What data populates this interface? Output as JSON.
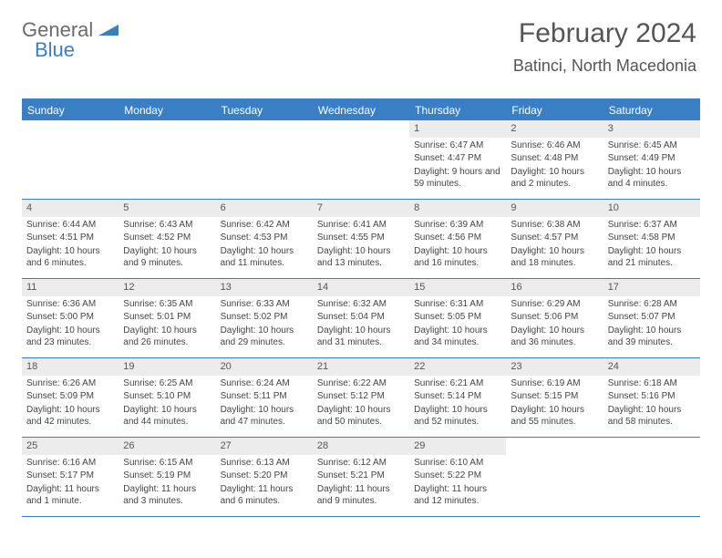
{
  "logo": {
    "part1": "General",
    "part2": "Blue"
  },
  "header": {
    "month": "February 2024",
    "location": "Batinci, North Macedonia"
  },
  "colors": {
    "accent": "#3a7fc4",
    "headerText": "#555",
    "daynumBg": "#ececec"
  },
  "weekdays": [
    "Sunday",
    "Monday",
    "Tuesday",
    "Wednesday",
    "Thursday",
    "Friday",
    "Saturday"
  ],
  "weeks": [
    [
      null,
      null,
      null,
      null,
      {
        "n": "1",
        "sr": "Sunrise: 6:47 AM",
        "ss": "Sunset: 4:47 PM",
        "dl": "Daylight: 9 hours and 59 minutes."
      },
      {
        "n": "2",
        "sr": "Sunrise: 6:46 AM",
        "ss": "Sunset: 4:48 PM",
        "dl": "Daylight: 10 hours and 2 minutes."
      },
      {
        "n": "3",
        "sr": "Sunrise: 6:45 AM",
        "ss": "Sunset: 4:49 PM",
        "dl": "Daylight: 10 hours and 4 minutes."
      }
    ],
    [
      {
        "n": "4",
        "sr": "Sunrise: 6:44 AM",
        "ss": "Sunset: 4:51 PM",
        "dl": "Daylight: 10 hours and 6 minutes."
      },
      {
        "n": "5",
        "sr": "Sunrise: 6:43 AM",
        "ss": "Sunset: 4:52 PM",
        "dl": "Daylight: 10 hours and 9 minutes."
      },
      {
        "n": "6",
        "sr": "Sunrise: 6:42 AM",
        "ss": "Sunset: 4:53 PM",
        "dl": "Daylight: 10 hours and 11 minutes."
      },
      {
        "n": "7",
        "sr": "Sunrise: 6:41 AM",
        "ss": "Sunset: 4:55 PM",
        "dl": "Daylight: 10 hours and 13 minutes."
      },
      {
        "n": "8",
        "sr": "Sunrise: 6:39 AM",
        "ss": "Sunset: 4:56 PM",
        "dl": "Daylight: 10 hours and 16 minutes."
      },
      {
        "n": "9",
        "sr": "Sunrise: 6:38 AM",
        "ss": "Sunset: 4:57 PM",
        "dl": "Daylight: 10 hours and 18 minutes."
      },
      {
        "n": "10",
        "sr": "Sunrise: 6:37 AM",
        "ss": "Sunset: 4:58 PM",
        "dl": "Daylight: 10 hours and 21 minutes."
      }
    ],
    [
      {
        "n": "11",
        "sr": "Sunrise: 6:36 AM",
        "ss": "Sunset: 5:00 PM",
        "dl": "Daylight: 10 hours and 23 minutes."
      },
      {
        "n": "12",
        "sr": "Sunrise: 6:35 AM",
        "ss": "Sunset: 5:01 PM",
        "dl": "Daylight: 10 hours and 26 minutes."
      },
      {
        "n": "13",
        "sr": "Sunrise: 6:33 AM",
        "ss": "Sunset: 5:02 PM",
        "dl": "Daylight: 10 hours and 29 minutes."
      },
      {
        "n": "14",
        "sr": "Sunrise: 6:32 AM",
        "ss": "Sunset: 5:04 PM",
        "dl": "Daylight: 10 hours and 31 minutes."
      },
      {
        "n": "15",
        "sr": "Sunrise: 6:31 AM",
        "ss": "Sunset: 5:05 PM",
        "dl": "Daylight: 10 hours and 34 minutes."
      },
      {
        "n": "16",
        "sr": "Sunrise: 6:29 AM",
        "ss": "Sunset: 5:06 PM",
        "dl": "Daylight: 10 hours and 36 minutes."
      },
      {
        "n": "17",
        "sr": "Sunrise: 6:28 AM",
        "ss": "Sunset: 5:07 PM",
        "dl": "Daylight: 10 hours and 39 minutes."
      }
    ],
    [
      {
        "n": "18",
        "sr": "Sunrise: 6:26 AM",
        "ss": "Sunset: 5:09 PM",
        "dl": "Daylight: 10 hours and 42 minutes."
      },
      {
        "n": "19",
        "sr": "Sunrise: 6:25 AM",
        "ss": "Sunset: 5:10 PM",
        "dl": "Daylight: 10 hours and 44 minutes."
      },
      {
        "n": "20",
        "sr": "Sunrise: 6:24 AM",
        "ss": "Sunset: 5:11 PM",
        "dl": "Daylight: 10 hours and 47 minutes."
      },
      {
        "n": "21",
        "sr": "Sunrise: 6:22 AM",
        "ss": "Sunset: 5:12 PM",
        "dl": "Daylight: 10 hours and 50 minutes."
      },
      {
        "n": "22",
        "sr": "Sunrise: 6:21 AM",
        "ss": "Sunset: 5:14 PM",
        "dl": "Daylight: 10 hours and 52 minutes."
      },
      {
        "n": "23",
        "sr": "Sunrise: 6:19 AM",
        "ss": "Sunset: 5:15 PM",
        "dl": "Daylight: 10 hours and 55 minutes."
      },
      {
        "n": "24",
        "sr": "Sunrise: 6:18 AM",
        "ss": "Sunset: 5:16 PM",
        "dl": "Daylight: 10 hours and 58 minutes."
      }
    ],
    [
      {
        "n": "25",
        "sr": "Sunrise: 6:16 AM",
        "ss": "Sunset: 5:17 PM",
        "dl": "Daylight: 11 hours and 1 minute."
      },
      {
        "n": "26",
        "sr": "Sunrise: 6:15 AM",
        "ss": "Sunset: 5:19 PM",
        "dl": "Daylight: 11 hours and 3 minutes."
      },
      {
        "n": "27",
        "sr": "Sunrise: 6:13 AM",
        "ss": "Sunset: 5:20 PM",
        "dl": "Daylight: 11 hours and 6 minutes."
      },
      {
        "n": "28",
        "sr": "Sunrise: 6:12 AM",
        "ss": "Sunset: 5:21 PM",
        "dl": "Daylight: 11 hours and 9 minutes."
      },
      {
        "n": "29",
        "sr": "Sunrise: 6:10 AM",
        "ss": "Sunset: 5:22 PM",
        "dl": "Daylight: 11 hours and 12 minutes."
      },
      null,
      null
    ]
  ]
}
